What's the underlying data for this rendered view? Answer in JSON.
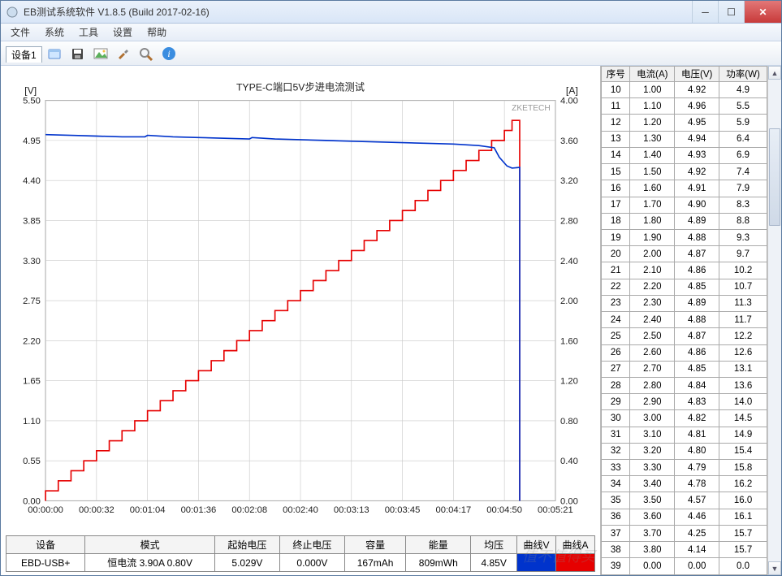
{
  "window": {
    "title": "EB测试系统软件 V1.8.5 (Build 2017-02-16)"
  },
  "menubar": [
    "文件",
    "系统",
    "工具",
    "设置",
    "帮助"
  ],
  "tab_label": "设备1",
  "toolbar_icons": [
    "open",
    "save",
    "picture",
    "tools",
    "search",
    "info"
  ],
  "chart": {
    "title": "TYPE-C端口5V步进电流测试",
    "watermark": "ZKETECH",
    "y_left_label": "[V]",
    "y_right_label": "[A]",
    "y_left": {
      "min": 0.0,
      "max": 5.5,
      "step": 0.55,
      "ticks": [
        "0.00",
        "0.55",
        "1.10",
        "1.65",
        "2.20",
        "2.75",
        "3.30",
        "3.85",
        "4.40",
        "4.95",
        "5.50"
      ]
    },
    "y_right": {
      "min": 0.0,
      "max": 4.0,
      "step": 0.4,
      "ticks": [
        "0.00",
        "0.40",
        "0.80",
        "1.20",
        "1.60",
        "2.00",
        "2.40",
        "2.80",
        "3.20",
        "3.60",
        "4.00"
      ]
    },
    "x_ticks": [
      "00:00:00",
      "00:00:32",
      "00:01:04",
      "00:01:36",
      "00:02:08",
      "00:02:40",
      "00:03:13",
      "00:03:45",
      "00:04:17",
      "00:04:50",
      "00:05:21"
    ],
    "grid_color": "#c8c8c8",
    "line_v_color": "#0033cc",
    "line_a_color": "#e60000",
    "bg_color": "#ffffff",
    "voltage_series": [
      [
        0.0,
        5.03
      ],
      [
        0.5,
        5.02
      ],
      [
        1.0,
        5.01
      ],
      [
        1.5,
        5.0
      ],
      [
        1.95,
        5.0
      ],
      [
        2.0,
        5.02
      ],
      [
        2.5,
        5.0
      ],
      [
        3.0,
        4.99
      ],
      [
        3.5,
        4.98
      ],
      [
        4.0,
        4.97
      ],
      [
        4.05,
        4.99
      ],
      [
        4.5,
        4.97
      ],
      [
        5.0,
        4.96
      ],
      [
        5.5,
        4.95
      ],
      [
        6.0,
        4.94
      ],
      [
        6.5,
        4.93
      ],
      [
        7.0,
        4.92
      ],
      [
        7.5,
        4.91
      ],
      [
        8.0,
        4.9
      ],
      [
        8.5,
        4.88
      ],
      [
        8.8,
        4.85
      ],
      [
        8.9,
        4.72
      ],
      [
        9.05,
        4.6
      ],
      [
        9.15,
        4.57
      ],
      [
        9.3,
        4.58
      ],
      [
        9.3,
        0.0
      ]
    ],
    "current_steps": [
      [
        0.0,
        0.0
      ],
      [
        0.0,
        0.1
      ],
      [
        0.25,
        0.1
      ],
      [
        0.25,
        0.2
      ],
      [
        0.5,
        0.2
      ],
      [
        0.5,
        0.3
      ],
      [
        0.75,
        0.3
      ],
      [
        0.75,
        0.4
      ],
      [
        1.0,
        0.4
      ],
      [
        1.0,
        0.5
      ],
      [
        1.25,
        0.5
      ],
      [
        1.25,
        0.6
      ],
      [
        1.5,
        0.6
      ],
      [
        1.5,
        0.7
      ],
      [
        1.75,
        0.7
      ],
      [
        1.75,
        0.8
      ],
      [
        2.0,
        0.8
      ],
      [
        2.0,
        0.9
      ],
      [
        2.25,
        0.9
      ],
      [
        2.25,
        1.0
      ],
      [
        2.5,
        1.0
      ],
      [
        2.5,
        1.1
      ],
      [
        2.75,
        1.1
      ],
      [
        2.75,
        1.2
      ],
      [
        3.0,
        1.2
      ],
      [
        3.0,
        1.3
      ],
      [
        3.25,
        1.3
      ],
      [
        3.25,
        1.4
      ],
      [
        3.5,
        1.4
      ],
      [
        3.5,
        1.5
      ],
      [
        3.75,
        1.5
      ],
      [
        3.75,
        1.6
      ],
      [
        4.0,
        1.6
      ],
      [
        4.0,
        1.7
      ],
      [
        4.25,
        1.7
      ],
      [
        4.25,
        1.8
      ],
      [
        4.5,
        1.8
      ],
      [
        4.5,
        1.9
      ],
      [
        4.75,
        1.9
      ],
      [
        4.75,
        2.0
      ],
      [
        5.0,
        2.0
      ],
      [
        5.0,
        2.1
      ],
      [
        5.25,
        2.1
      ],
      [
        5.25,
        2.2
      ],
      [
        5.5,
        2.2
      ],
      [
        5.5,
        2.3
      ],
      [
        5.75,
        2.3
      ],
      [
        5.75,
        2.4
      ],
      [
        6.0,
        2.4
      ],
      [
        6.0,
        2.5
      ],
      [
        6.25,
        2.5
      ],
      [
        6.25,
        2.6
      ],
      [
        6.5,
        2.6
      ],
      [
        6.5,
        2.7
      ],
      [
        6.75,
        2.7
      ],
      [
        6.75,
        2.8
      ],
      [
        7.0,
        2.8
      ],
      [
        7.0,
        2.9
      ],
      [
        7.25,
        2.9
      ],
      [
        7.25,
        3.0
      ],
      [
        7.5,
        3.0
      ],
      [
        7.5,
        3.1
      ],
      [
        7.75,
        3.1
      ],
      [
        7.75,
        3.2
      ],
      [
        8.0,
        3.2
      ],
      [
        8.0,
        3.3
      ],
      [
        8.25,
        3.3
      ],
      [
        8.25,
        3.4
      ],
      [
        8.5,
        3.4
      ],
      [
        8.5,
        3.5
      ],
      [
        8.75,
        3.5
      ],
      [
        8.75,
        3.6
      ],
      [
        9.0,
        3.6
      ],
      [
        9.0,
        3.7
      ],
      [
        9.15,
        3.7
      ],
      [
        9.15,
        3.8
      ],
      [
        9.3,
        3.8
      ],
      [
        9.3,
        0.0
      ]
    ],
    "x_max": 10.0
  },
  "summary": {
    "headers": [
      "设备",
      "模式",
      "起始电压",
      "终止电压",
      "容量",
      "能量",
      "均压",
      "曲线V",
      "曲线A"
    ],
    "device": "EBD-USB+",
    "mode": "恒电流  3.90A  0.80V",
    "start_v": "5.029V",
    "end_v": "0.000V",
    "capacity": "167mAh",
    "energy": "809mWh",
    "avg_v": "4.85V"
  },
  "table": {
    "headers": [
      "序号",
      "电流(A)",
      "电压(V)",
      "功率(W)"
    ],
    "rows": [
      [
        "10",
        "1.00",
        "4.92",
        "4.9"
      ],
      [
        "11",
        "1.10",
        "4.96",
        "5.5"
      ],
      [
        "12",
        "1.20",
        "4.95",
        "5.9"
      ],
      [
        "13",
        "1.30",
        "4.94",
        "6.4"
      ],
      [
        "14",
        "1.40",
        "4.93",
        "6.9"
      ],
      [
        "15",
        "1.50",
        "4.92",
        "7.4"
      ],
      [
        "16",
        "1.60",
        "4.91",
        "7.9"
      ],
      [
        "17",
        "1.70",
        "4.90",
        "8.3"
      ],
      [
        "18",
        "1.80",
        "4.89",
        "8.8"
      ],
      [
        "19",
        "1.90",
        "4.88",
        "9.3"
      ],
      [
        "20",
        "2.00",
        "4.87",
        "9.7"
      ],
      [
        "21",
        "2.10",
        "4.86",
        "10.2"
      ],
      [
        "22",
        "2.20",
        "4.85",
        "10.7"
      ],
      [
        "23",
        "2.30",
        "4.89",
        "11.3"
      ],
      [
        "24",
        "2.40",
        "4.88",
        "11.7"
      ],
      [
        "25",
        "2.50",
        "4.87",
        "12.2"
      ],
      [
        "26",
        "2.60",
        "4.86",
        "12.6"
      ],
      [
        "27",
        "2.70",
        "4.85",
        "13.1"
      ],
      [
        "28",
        "2.80",
        "4.84",
        "13.6"
      ],
      [
        "29",
        "2.90",
        "4.83",
        "14.0"
      ],
      [
        "30",
        "3.00",
        "4.82",
        "14.5"
      ],
      [
        "31",
        "3.10",
        "4.81",
        "14.9"
      ],
      [
        "32",
        "3.20",
        "4.80",
        "15.4"
      ],
      [
        "33",
        "3.30",
        "4.79",
        "15.8"
      ],
      [
        "34",
        "3.40",
        "4.78",
        "16.2"
      ],
      [
        "35",
        "3.50",
        "4.57",
        "16.0"
      ],
      [
        "36",
        "3.60",
        "4.46",
        "16.1"
      ],
      [
        "37",
        "3.70",
        "4.25",
        "15.7"
      ],
      [
        "38",
        "3.80",
        "4.14",
        "15.7"
      ],
      [
        "39",
        "0.00",
        "0.00",
        "0.0"
      ]
    ]
  },
  "watermark_corner": "值不值得买"
}
